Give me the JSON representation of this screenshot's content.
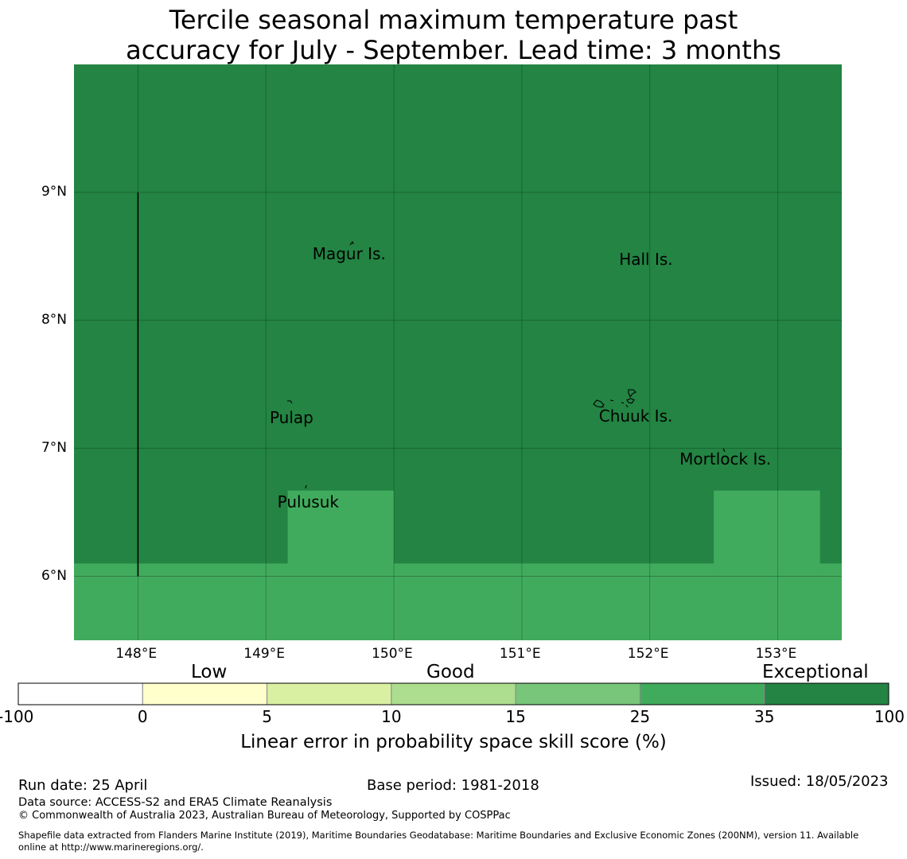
{
  "title_line1": "Tercile seasonal maximum temperature past",
  "title_line2": "accuracy for July - September. Lead time: 3 months",
  "map": {
    "lon_range": [
      147.5,
      153.5
    ],
    "lat_range": [
      5.5,
      10.0
    ],
    "lon_ticks": [
      {
        "value": 148,
        "label": "148°E"
      },
      {
        "value": 149,
        "label": "149°E"
      },
      {
        "value": 150,
        "label": "150°E"
      },
      {
        "value": 151,
        "label": "151°E"
      },
      {
        "value": 152,
        "label": "152°E"
      },
      {
        "value": 153,
        "label": "153°E"
      }
    ],
    "lat_ticks": [
      {
        "value": 9,
        "label": "9°N"
      },
      {
        "value": 8,
        "label": "8°N"
      },
      {
        "value": 7,
        "label": "7°N"
      },
      {
        "value": 6,
        "label": "6°N"
      }
    ],
    "background_color": "#238443",
    "skill_zone_color": "#41ab5d",
    "skill_zones": [
      {
        "lon": [
          147.5,
          153.5
        ],
        "lat": [
          5.5,
          6.1
        ]
      },
      {
        "lon": [
          149.17,
          150.0
        ],
        "lat": [
          5.5,
          6.67
        ]
      },
      {
        "lon": [
          152.5,
          153.33
        ],
        "lat": [
          5.5,
          6.67
        ]
      }
    ],
    "boundary_line": {
      "lon": 148.0,
      "lat": [
        6.0,
        9.0
      ]
    },
    "places": [
      {
        "name": "Magur Is.",
        "lon": 149.65,
        "lat": 8.52
      },
      {
        "name": "Hall Is.",
        "lon": 151.97,
        "lat": 8.48
      },
      {
        "name": "Pulap",
        "lon": 149.2,
        "lat": 7.24
      },
      {
        "name": "Chuuk Is.",
        "lon": 151.89,
        "lat": 7.25
      },
      {
        "name": "Mortlock Is.",
        "lon": 152.59,
        "lat": 6.92
      },
      {
        "name": "Pulusuk",
        "lon": 149.33,
        "lat": 6.58
      }
    ]
  },
  "colorbar": {
    "bins": [
      {
        "from": "-100",
        "to": "0",
        "color": "#ffffff"
      },
      {
        "from": "0",
        "to": "5",
        "color": "#ffffcc"
      },
      {
        "from": "5",
        "to": "10",
        "color": "#d9f0a3"
      },
      {
        "from": "10",
        "to": "15",
        "color": "#addd8e"
      },
      {
        "from": "15",
        "to": "25",
        "color": "#78c679"
      },
      {
        "from": "25",
        "to": "35",
        "color": "#41ab5d"
      },
      {
        "from": "35",
        "to": "100",
        "color": "#238443"
      }
    ],
    "tick_labels": [
      "-100",
      "0",
      "5",
      "10",
      "15",
      "25",
      "35",
      "100"
    ],
    "categories": [
      "Low",
      "Good",
      "Exceptional"
    ],
    "label": "Linear error in probability space skill score (%)"
  },
  "footer": {
    "run_date": "Run date: 25 April",
    "base_period": "Base period: 1981-2018",
    "issued": "Issued: 18/05/2023",
    "data_source": "Data source: ACCESS-S2 and ERA5 Climate Reanalysis",
    "copyright": "© Commonwealth of Australia 2023, Australian Bureau of Meteorology, Supported by COSPPac",
    "shapefile_line1": "Shapefile data extracted from Flanders Marine Institute (2019), Maritime Boundaries Geodatabase: Maritime Boundaries and Exclusive Economic Zones (200NM), version 11. Available",
    "shapefile_line2": "online at http://www.marineregions.org/."
  }
}
